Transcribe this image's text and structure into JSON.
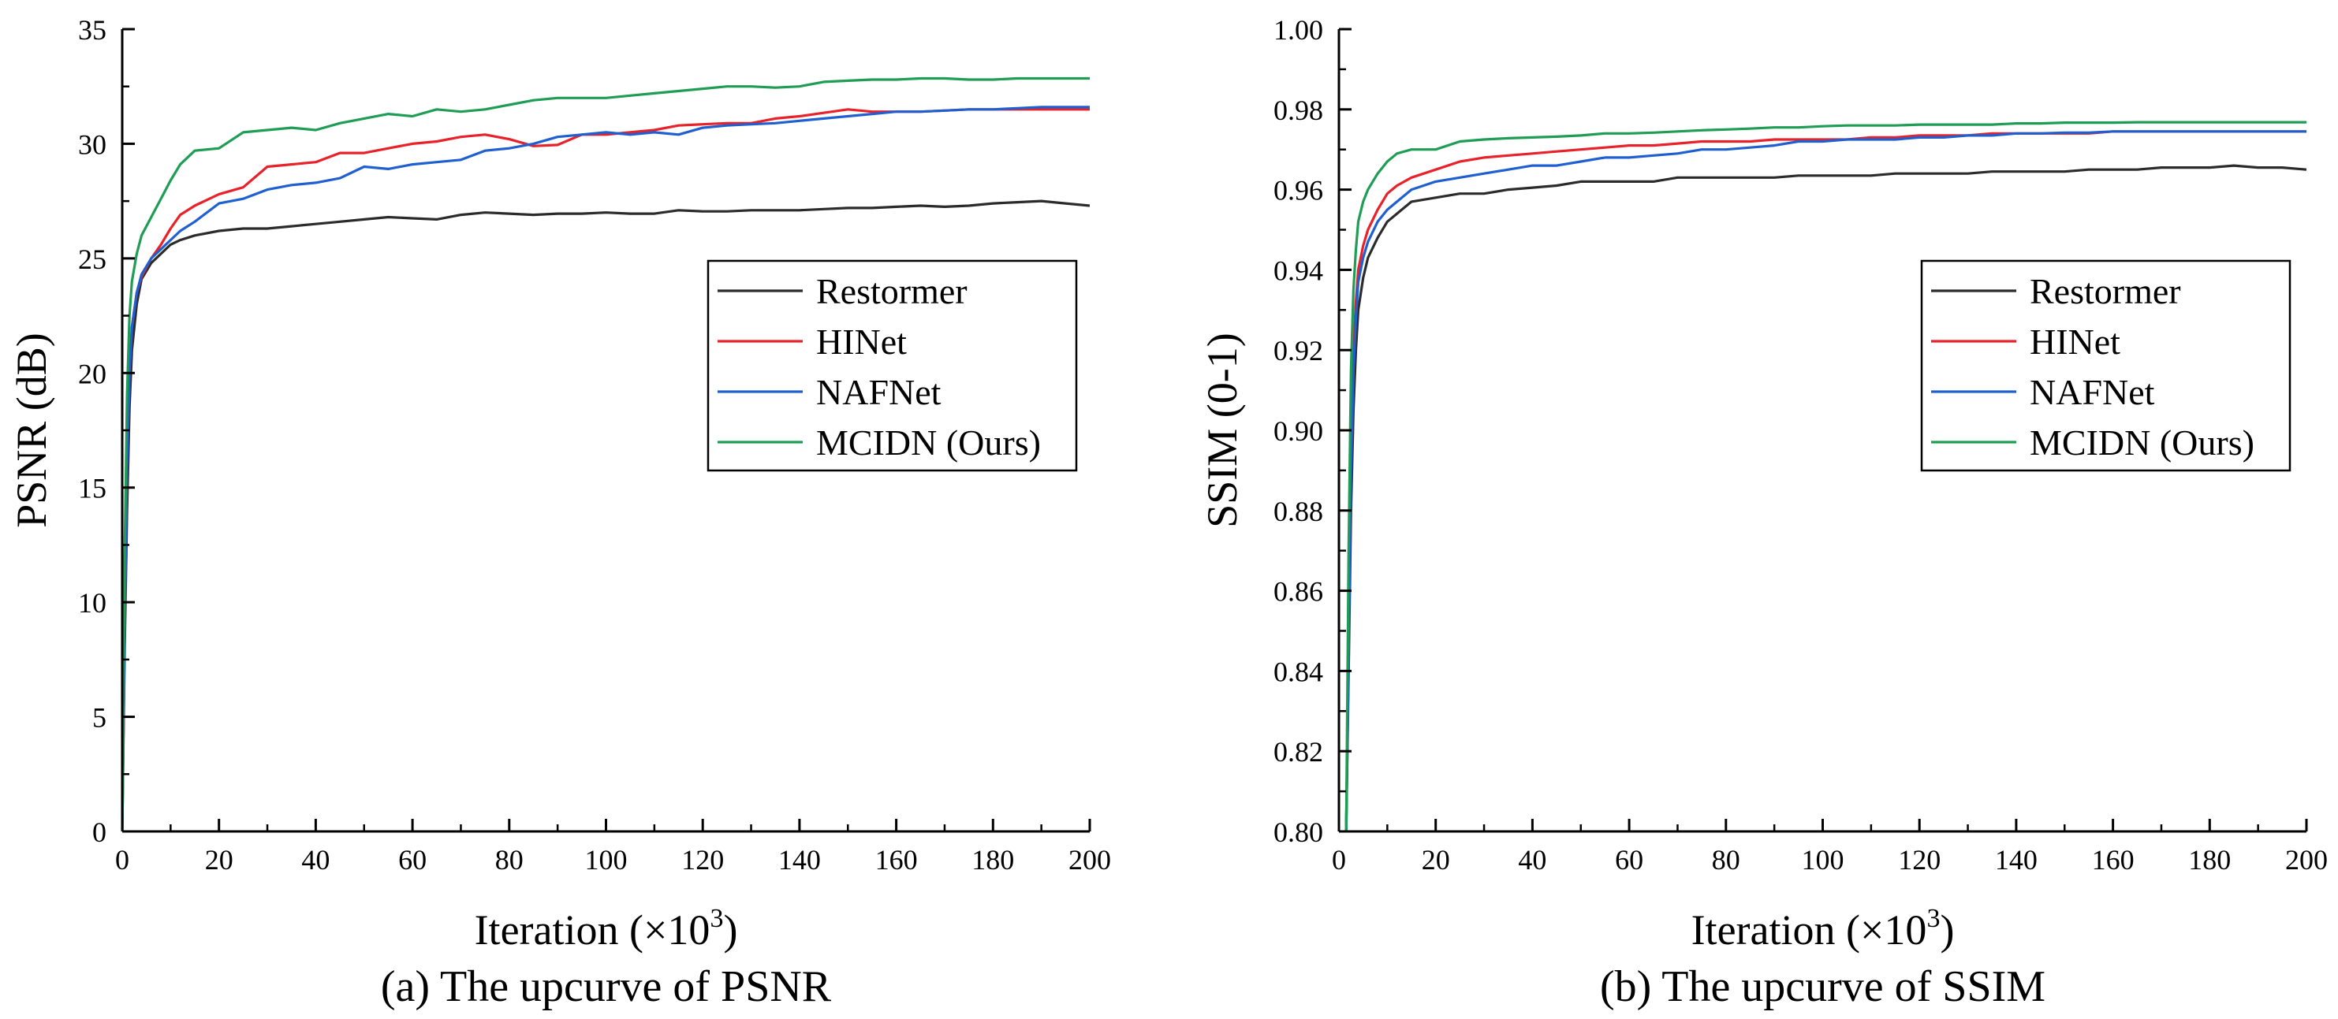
{
  "chart_data": [
    {
      "type": "line",
      "id": "psnr",
      "caption": "(a) The upcurve of PSNR",
      "xlabel": "Iteration (×10",
      "xlabel_sup": "3",
      "xlabel_close": ")",
      "ylabel": "PSNR (dB)",
      "xlim": [
        0,
        200
      ],
      "ylim": [
        0,
        35
      ],
      "xticks": [
        "0",
        "20",
        "40",
        "60",
        "80",
        "100",
        "120",
        "140",
        "160",
        "180",
        "200"
      ],
      "yticks": [
        "0",
        "5",
        "10",
        "15",
        "20",
        "25",
        "30",
        "35"
      ],
      "legend_position": "center-right",
      "series": [
        {
          "name": "Restormer",
          "color": "#2b2b2b",
          "x": [
            0,
            0.5,
            1,
            1.5,
            2,
            3,
            4,
            6,
            8,
            10,
            12,
            15,
            20,
            25,
            30,
            35,
            40,
            45,
            50,
            55,
            60,
            65,
            70,
            75,
            80,
            85,
            90,
            95,
            100,
            105,
            110,
            115,
            120,
            125,
            130,
            135,
            140,
            145,
            150,
            155,
            160,
            165,
            170,
            175,
            180,
            185,
            190,
            195,
            200
          ],
          "y": [
            0,
            8,
            14,
            18.5,
            21,
            23,
            24.1,
            24.8,
            25.2,
            25.6,
            25.8,
            26.0,
            26.2,
            26.3,
            26.3,
            26.4,
            26.5,
            26.6,
            26.7,
            26.8,
            26.75,
            26.7,
            26.9,
            27.0,
            26.95,
            26.9,
            26.95,
            26.95,
            27.0,
            26.95,
            26.95,
            27.1,
            27.05,
            27.05,
            27.1,
            27.1,
            27.1,
            27.15,
            27.2,
            27.2,
            27.25,
            27.3,
            27.25,
            27.3,
            27.4,
            27.45,
            27.5,
            27.4,
            27.3
          ]
        },
        {
          "name": "HINet",
          "color": "#e8222a",
          "x": [
            0,
            0.5,
            1,
            1.5,
            2,
            3,
            4,
            6,
            8,
            10,
            12,
            15,
            20,
            25,
            30,
            35,
            40,
            45,
            50,
            55,
            60,
            65,
            70,
            75,
            80,
            85,
            90,
            95,
            100,
            105,
            110,
            115,
            120,
            125,
            130,
            135,
            140,
            145,
            150,
            155,
            160,
            165,
            170,
            175,
            180,
            185,
            190,
            195,
            200
          ],
          "y": [
            0,
            9,
            16,
            20,
            22,
            23.5,
            24.2,
            25,
            25.6,
            26.3,
            26.9,
            27.3,
            27.8,
            28.1,
            29.0,
            29.1,
            29.2,
            29.6,
            29.6,
            29.8,
            30.0,
            30.1,
            30.3,
            30.4,
            30.2,
            29.9,
            29.95,
            30.4,
            30.4,
            30.5,
            30.6,
            30.8,
            30.85,
            30.9,
            30.9,
            31.1,
            31.2,
            31.35,
            31.5,
            31.4,
            31.4,
            31.4,
            31.45,
            31.5,
            31.5,
            31.5,
            31.5,
            31.5,
            31.5
          ]
        },
        {
          "name": "NAFNet",
          "color": "#1f5fd0",
          "x": [
            0,
            0.5,
            1,
            1.5,
            2,
            3,
            4,
            6,
            8,
            10,
            12,
            15,
            20,
            25,
            30,
            35,
            40,
            45,
            50,
            55,
            60,
            65,
            70,
            75,
            80,
            85,
            90,
            95,
            100,
            105,
            110,
            115,
            120,
            125,
            130,
            135,
            140,
            145,
            150,
            155,
            160,
            165,
            170,
            175,
            180,
            185,
            190,
            195,
            200
          ],
          "y": [
            0,
            9,
            16,
            20,
            22,
            23.5,
            24.3,
            25,
            25.4,
            25.8,
            26.2,
            26.6,
            27.4,
            27.6,
            28.0,
            28.2,
            28.3,
            28.5,
            29.0,
            28.9,
            29.1,
            29.2,
            29.3,
            29.7,
            29.8,
            30.0,
            30.3,
            30.4,
            30.5,
            30.4,
            30.5,
            30.4,
            30.7,
            30.8,
            30.85,
            30.9,
            31.0,
            31.1,
            31.2,
            31.3,
            31.4,
            31.4,
            31.45,
            31.5,
            31.5,
            31.55,
            31.6,
            31.6,
            31.6
          ]
        },
        {
          "name": "MCIDN (Ours)",
          "color": "#1f9d55",
          "x": [
            0,
            0.5,
            1,
            1.5,
            2,
            3,
            4,
            6,
            8,
            10,
            12,
            15,
            20,
            25,
            30,
            35,
            40,
            45,
            50,
            55,
            60,
            65,
            70,
            75,
            80,
            85,
            90,
            95,
            100,
            105,
            110,
            115,
            120,
            125,
            130,
            135,
            140,
            145,
            150,
            155,
            160,
            165,
            170,
            175,
            180,
            185,
            190,
            195,
            200
          ],
          "y": [
            0,
            12,
            19,
            22.5,
            24,
            25.2,
            26.0,
            26.8,
            27.6,
            28.4,
            29.1,
            29.7,
            29.8,
            30.5,
            30.6,
            30.7,
            30.6,
            30.9,
            31.1,
            31.3,
            31.2,
            31.5,
            31.4,
            31.5,
            31.7,
            31.9,
            32.0,
            32.0,
            32.0,
            32.1,
            32.2,
            32.3,
            32.4,
            32.5,
            32.5,
            32.45,
            32.5,
            32.7,
            32.75,
            32.8,
            32.8,
            32.85,
            32.85,
            32.8,
            32.8,
            32.85,
            32.85,
            32.85,
            32.85
          ]
        }
      ]
    },
    {
      "type": "line",
      "id": "ssim",
      "caption": "(b) The upcurve of SSIM",
      "xlabel": "Iteration (×10",
      "xlabel_sup": "3",
      "xlabel_close": ")",
      "ylabel": "SSIM (0-1)",
      "xlim": [
        0,
        200
      ],
      "ylim": [
        0.8,
        1.0
      ],
      "xticks": [
        "0",
        "20",
        "40",
        "60",
        "80",
        "100",
        "120",
        "140",
        "160",
        "180",
        "200"
      ],
      "yticks": [
        "0.80",
        "0.82",
        "0.84",
        "0.86",
        "0.88",
        "0.90",
        "0.92",
        "0.94",
        "0.96",
        "0.98",
        "1.00"
      ],
      "legend_position": "center-right",
      "series": [
        {
          "name": "Restormer",
          "color": "#2b2b2b",
          "x": [
            1.5,
            2,
            2.5,
            3,
            3.5,
            4,
            5,
            6,
            8,
            10,
            12,
            15,
            20,
            25,
            30,
            35,
            40,
            45,
            50,
            55,
            60,
            65,
            70,
            75,
            80,
            85,
            90,
            95,
            100,
            105,
            110,
            115,
            120,
            125,
            130,
            135,
            140,
            145,
            150,
            155,
            160,
            165,
            170,
            175,
            180,
            185,
            190,
            195,
            200
          ],
          "y": [
            0.8,
            0.84,
            0.88,
            0.905,
            0.92,
            0.93,
            0.938,
            0.943,
            0.948,
            0.952,
            0.954,
            0.957,
            0.958,
            0.959,
            0.959,
            0.96,
            0.9605,
            0.961,
            0.962,
            0.962,
            0.962,
            0.962,
            0.963,
            0.963,
            0.963,
            0.963,
            0.963,
            0.9635,
            0.9635,
            0.9635,
            0.9635,
            0.964,
            0.964,
            0.964,
            0.964,
            0.9645,
            0.9645,
            0.9645,
            0.9645,
            0.965,
            0.965,
            0.965,
            0.9655,
            0.9655,
            0.9655,
            0.966,
            0.9655,
            0.9655,
            0.965
          ]
        },
        {
          "name": "HINet",
          "color": "#e8222a",
          "x": [
            1.5,
            2,
            2.5,
            3,
            3.5,
            4,
            5,
            6,
            8,
            10,
            12,
            15,
            20,
            25,
            30,
            35,
            40,
            45,
            50,
            55,
            60,
            65,
            70,
            75,
            80,
            85,
            90,
            95,
            100,
            105,
            110,
            115,
            120,
            125,
            130,
            135,
            140,
            145,
            150,
            155,
            160,
            165,
            170,
            175,
            180,
            185,
            190,
            195,
            200
          ],
          "y": [
            0.8,
            0.85,
            0.895,
            0.92,
            0.932,
            0.94,
            0.946,
            0.95,
            0.955,
            0.959,
            0.961,
            0.963,
            0.965,
            0.967,
            0.968,
            0.9685,
            0.969,
            0.9695,
            0.97,
            0.9705,
            0.971,
            0.971,
            0.9715,
            0.972,
            0.972,
            0.972,
            0.9725,
            0.9725,
            0.9725,
            0.9725,
            0.973,
            0.973,
            0.9735,
            0.9735,
            0.9735,
            0.974,
            0.974,
            0.974,
            0.974,
            0.974,
            0.9745,
            0.9745,
            0.9745,
            0.9745,
            0.9745,
            0.9745,
            0.9745,
            0.9745,
            0.9745
          ]
        },
        {
          "name": "NAFNet",
          "color": "#1f5fd0",
          "x": [
            1.5,
            2,
            2.5,
            3,
            3.5,
            4,
            5,
            6,
            8,
            10,
            12,
            15,
            20,
            25,
            30,
            35,
            40,
            45,
            50,
            55,
            60,
            65,
            70,
            75,
            80,
            85,
            90,
            95,
            100,
            105,
            110,
            115,
            120,
            125,
            130,
            135,
            140,
            145,
            150,
            155,
            160,
            165,
            170,
            175,
            180,
            185,
            190,
            195,
            200
          ],
          "y": [
            0.8,
            0.845,
            0.89,
            0.915,
            0.928,
            0.937,
            0.943,
            0.947,
            0.952,
            0.955,
            0.957,
            0.96,
            0.962,
            0.963,
            0.964,
            0.965,
            0.966,
            0.966,
            0.967,
            0.968,
            0.968,
            0.9685,
            0.969,
            0.97,
            0.97,
            0.9705,
            0.971,
            0.972,
            0.972,
            0.9725,
            0.9725,
            0.9725,
            0.973,
            0.973,
            0.9735,
            0.9735,
            0.974,
            0.974,
            0.9742,
            0.9742,
            0.9745,
            0.9745,
            0.9745,
            0.9745,
            0.9745,
            0.9745,
            0.9745,
            0.9745,
            0.9745
          ]
        },
        {
          "name": "MCIDN (Ours)",
          "color": "#1f9d55",
          "x": [
            1.5,
            2,
            2.5,
            3,
            3.5,
            4,
            5,
            6,
            8,
            10,
            12,
            15,
            20,
            25,
            30,
            35,
            40,
            45,
            50,
            55,
            60,
            65,
            70,
            75,
            80,
            85,
            90,
            95,
            100,
            105,
            110,
            115,
            120,
            125,
            130,
            135,
            140,
            145,
            150,
            155,
            160,
            165,
            170,
            175,
            180,
            185,
            190,
            195,
            200
          ],
          "y": [
            0.8,
            0.87,
            0.915,
            0.935,
            0.945,
            0.952,
            0.957,
            0.96,
            0.964,
            0.967,
            0.969,
            0.97,
            0.97,
            0.972,
            0.9725,
            0.9728,
            0.973,
            0.9732,
            0.9735,
            0.974,
            0.974,
            0.9742,
            0.9745,
            0.9748,
            0.975,
            0.9752,
            0.9755,
            0.9755,
            0.9758,
            0.976,
            0.976,
            0.976,
            0.9762,
            0.9762,
            0.9762,
            0.9762,
            0.9765,
            0.9765,
            0.9767,
            0.9767,
            0.9767,
            0.9768,
            0.9768,
            0.9768,
            0.9768,
            0.9768,
            0.9768,
            0.9768,
            0.9768
          ]
        }
      ]
    }
  ]
}
